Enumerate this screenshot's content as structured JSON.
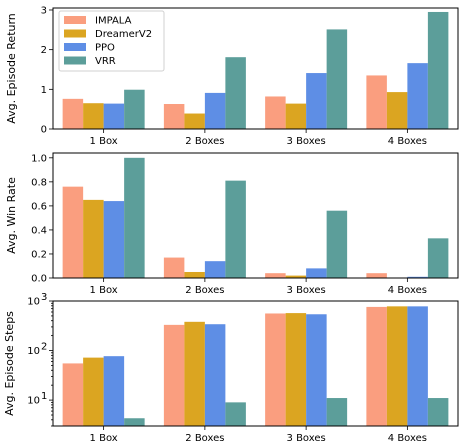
{
  "chart_data": [
    {
      "type": "bar",
      "categories": [
        "1 Box",
        "2 Boxes",
        "3 Boxes",
        "4 Boxes"
      ],
      "ylabel": "Avg. Episode Return",
      "ylim": [
        0,
        3.05
      ],
      "yticks": [
        "0",
        "1",
        "2",
        "3"
      ],
      "yscale": "linear",
      "legend": "top-left",
      "series": [
        {
          "name": "IMPALA",
          "color": "#FA9E7F",
          "values": [
            0.76,
            0.63,
            0.82,
            1.35
          ]
        },
        {
          "name": "DreamerV2",
          "color": "#DBA521",
          "values": [
            0.65,
            0.39,
            0.64,
            0.93
          ]
        },
        {
          "name": "PPO",
          "color": "#5E8EE5",
          "values": [
            0.64,
            0.91,
            1.41,
            1.66
          ]
        },
        {
          "name": "VRR",
          "color": "#5C9E9A",
          "values": [
            0.99,
            1.81,
            2.51,
            2.95
          ]
        }
      ]
    },
    {
      "type": "bar",
      "categories": [
        "1 Box",
        "2 Boxes",
        "3 Boxes",
        "4 Boxes"
      ],
      "ylabel": "Avg. Win Rate",
      "ylim": [
        0,
        1.04
      ],
      "yticks": [
        "0.0",
        "0.2",
        "0.4",
        "0.6",
        "0.8",
        "1.0"
      ],
      "yscale": "linear",
      "series": [
        {
          "name": "IMPALA",
          "color": "#FA9E7F",
          "values": [
            0.76,
            0.17,
            0.04,
            0.04
          ]
        },
        {
          "name": "DreamerV2",
          "color": "#DBA521",
          "values": [
            0.65,
            0.05,
            0.02,
            0.0
          ]
        },
        {
          "name": "PPO",
          "color": "#5E8EE5",
          "values": [
            0.64,
            0.14,
            0.08,
            0.01
          ]
        },
        {
          "name": "VRR",
          "color": "#5C9E9A",
          "values": [
            1.0,
            0.81,
            0.56,
            0.33
          ]
        }
      ]
    },
    {
      "type": "bar",
      "categories": [
        "1 Box",
        "2 Boxes",
        "3 Boxes",
        "4 Boxes"
      ],
      "ylabel": "Avg. Episode Steps",
      "ylim": [
        3,
        1000
      ],
      "yticks": [
        "10",
        "10",
        "10"
      ],
      "ytick_exponents": [
        "1",
        "2",
        "3"
      ],
      "yscale": "log",
      "series": [
        {
          "name": "IMPALA",
          "color": "#FA9E7F",
          "values": [
            55,
            330,
            560,
            760
          ]
        },
        {
          "name": "DreamerV2",
          "color": "#DBA521",
          "values": [
            72,
            380,
            570,
            780
          ]
        },
        {
          "name": "PPO",
          "color": "#5E8EE5",
          "values": [
            77,
            340,
            540,
            780
          ]
        },
        {
          "name": "VRR",
          "color": "#5C9E9A",
          "values": [
            4.3,
            9,
            11,
            11
          ]
        }
      ]
    }
  ]
}
